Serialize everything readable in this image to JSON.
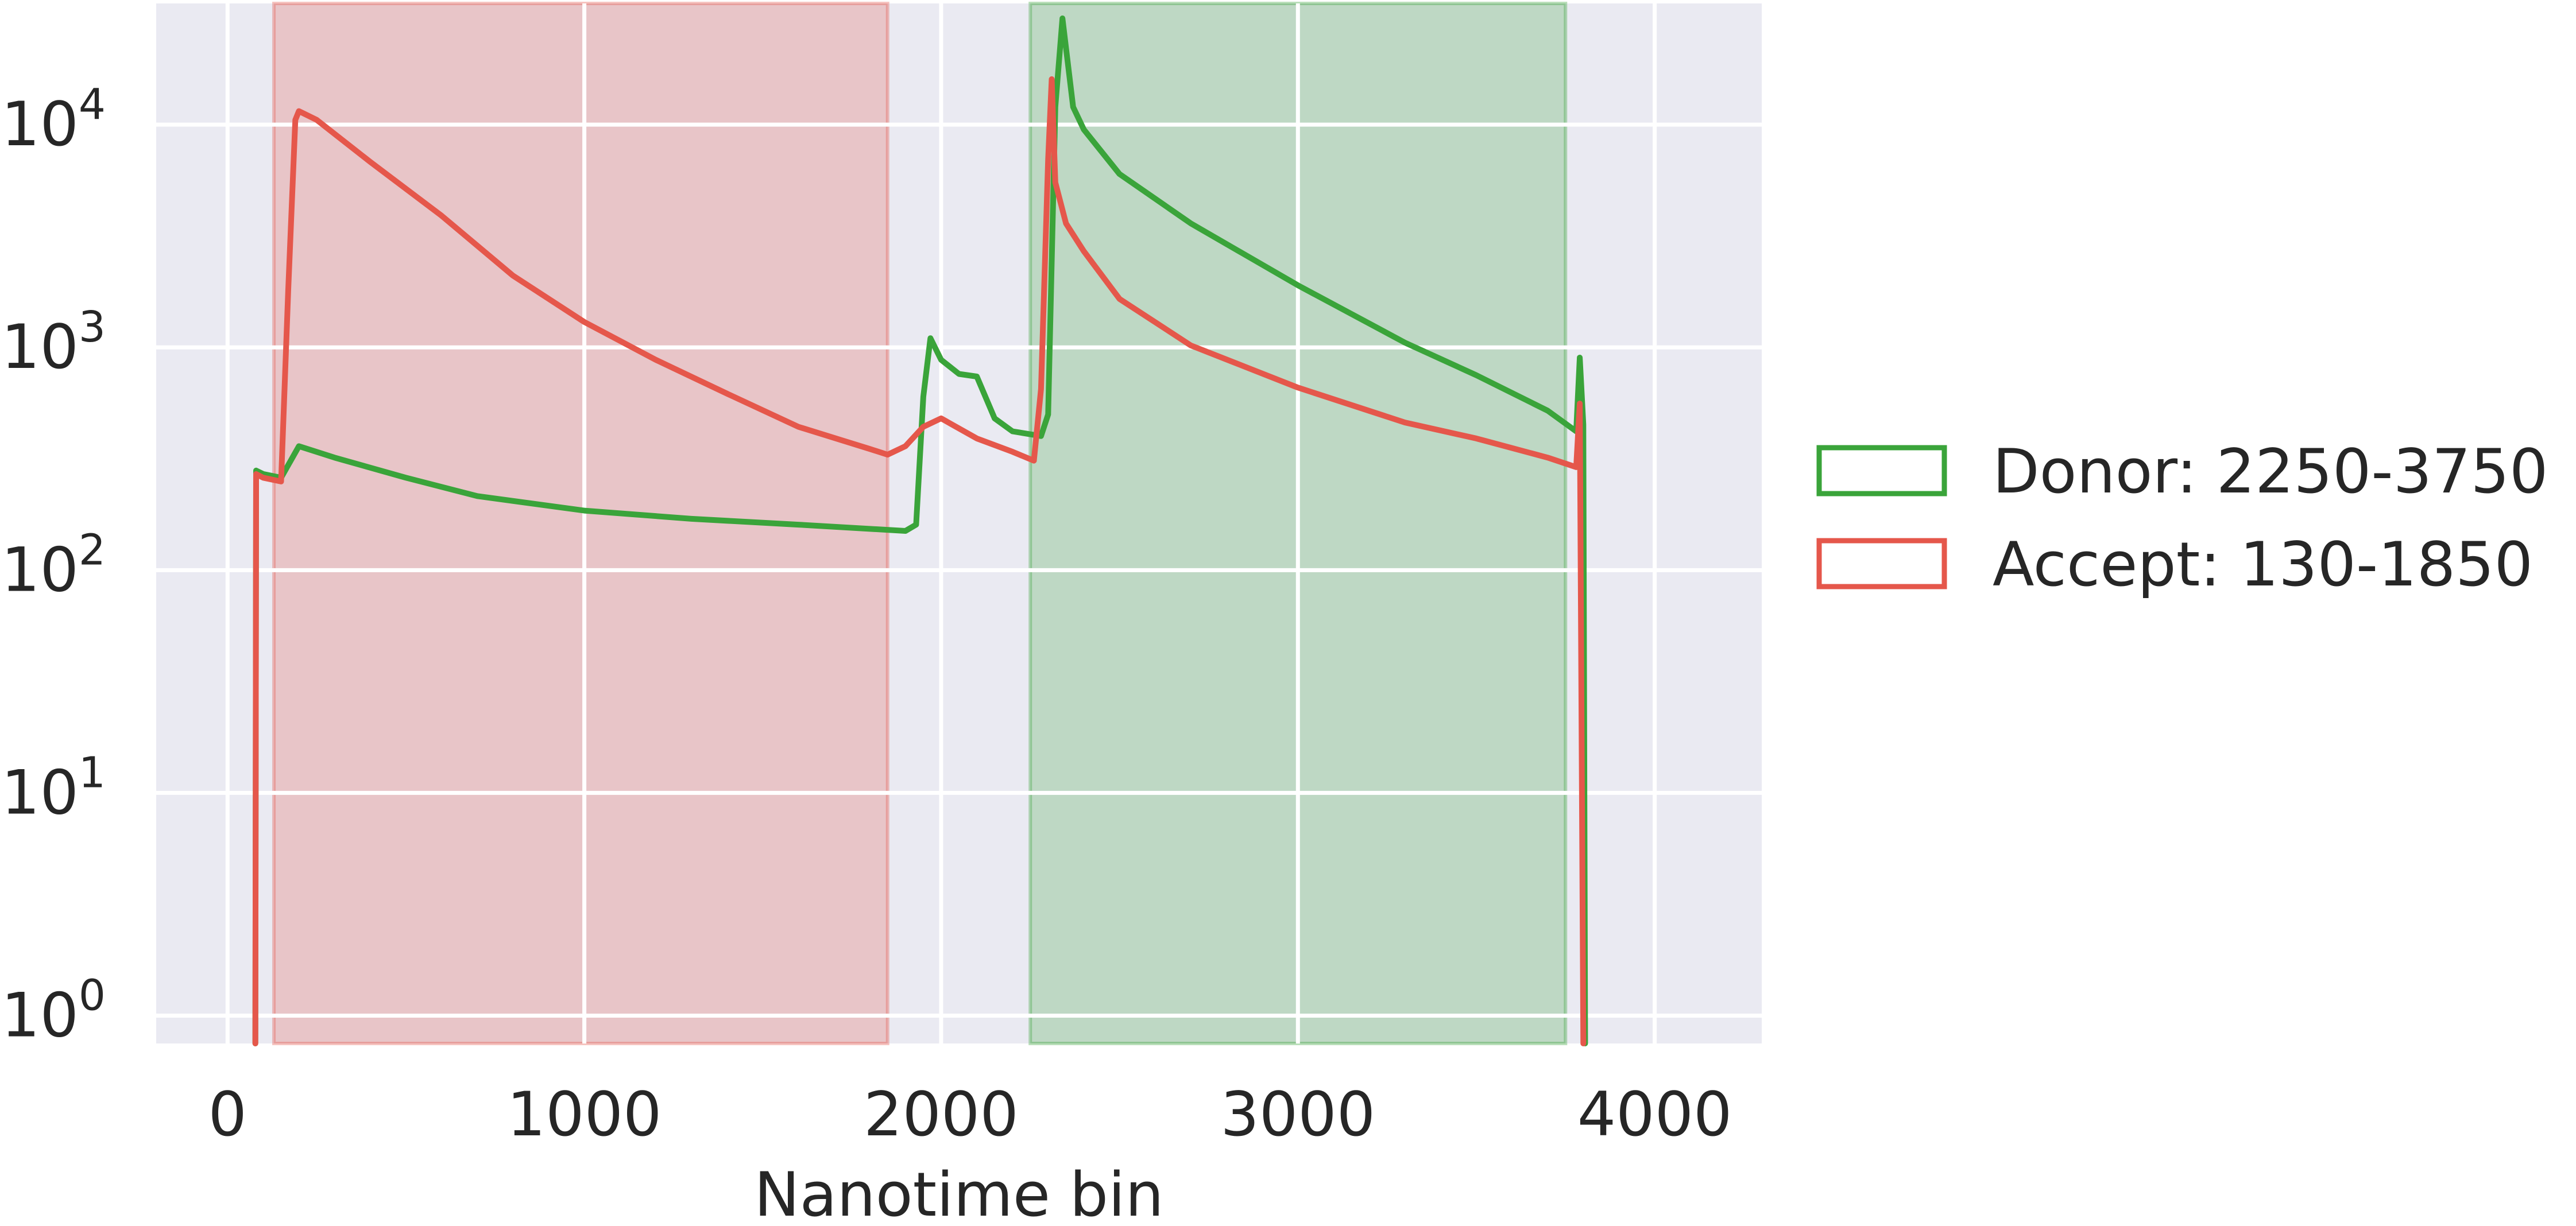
{
  "chart_data": {
    "type": "line",
    "title": "",
    "xlabel": "Nanotime bin",
    "ylabel": "",
    "y_scale": "log",
    "x_ticks": [
      0,
      1000,
      2000,
      3000,
      4000
    ],
    "x_tick_labels": [
      "0",
      "1000",
      "2000",
      "3000",
      "4000"
    ],
    "y_ticks": [
      1,
      10,
      100,
      1000,
      10000
    ],
    "y_tick_labels": [
      {
        "base": "10",
        "exp": "0"
      },
      {
        "base": "10",
        "exp": "1"
      },
      {
        "base": "10",
        "exp": "2"
      },
      {
        "base": "10",
        "exp": "3"
      },
      {
        "base": "10",
        "exp": "4"
      }
    ],
    "xlim": [
      -200,
      4300
    ],
    "ylim": [
      0.75,
      35000
    ],
    "grid": true,
    "background": "#eaeaf2",
    "legend_position": "right, outside the plot",
    "legend": [
      {
        "label": "Donor: 2250-3750",
        "color": "#3aa43a"
      },
      {
        "label": "Accept: 130-1850",
        "color": "#e5574b"
      }
    ],
    "shaded_ranges": [
      {
        "x0": 130,
        "x1": 1850,
        "color": "#e5574b"
      },
      {
        "x0": 2250,
        "x1": 3750,
        "color": "#3aa43a"
      }
    ],
    "series": [
      {
        "color": "#3aa43a",
        "x": [
          78,
          80,
          100,
          150,
          200,
          300,
          500,
          700,
          1000,
          1300,
          1600,
          1900,
          1930,
          1950,
          1970,
          2000,
          2050,
          2100,
          2150,
          2200,
          2280,
          2300,
          2320,
          2340,
          2370,
          2400,
          2500,
          2700,
          3000,
          3300,
          3500,
          3700,
          3780,
          3790,
          3800,
          3805
        ],
        "y": [
          0.5,
          280,
          270,
          260,
          360,
          320,
          260,
          215,
          185,
          170,
          160,
          150,
          160,
          600,
          1100,
          880,
          760,
          740,
          480,
          420,
          400,
          500,
          12000,
          30000,
          12000,
          9500,
          6000,
          3600,
          1900,
          1050,
          750,
          520,
          420,
          900,
          450,
          0.5
        ]
      },
      {
        "color": "#e5574b",
        "x": [
          78,
          80,
          100,
          150,
          170,
          190,
          200,
          250,
          400,
          600,
          800,
          1000,
          1200,
          1400,
          1600,
          1800,
          1850,
          1900,
          1950,
          2000,
          2100,
          2200,
          2260,
          2280,
          2300,
          2310,
          2320,
          2350,
          2400,
          2500,
          2700,
          3000,
          3300,
          3500,
          3700,
          3780,
          3790,
          3800
        ],
        "y": [
          0.5,
          270,
          260,
          250,
          1800,
          10500,
          11500,
          10500,
          6800,
          3900,
          2100,
          1300,
          880,
          620,
          440,
          350,
          330,
          360,
          440,
          480,
          390,
          340,
          310,
          650,
          7000,
          16000,
          5500,
          3600,
          2700,
          1650,
          1020,
          660,
          460,
          390,
          320,
          290,
          560,
          0.5
        ]
      }
    ]
  }
}
